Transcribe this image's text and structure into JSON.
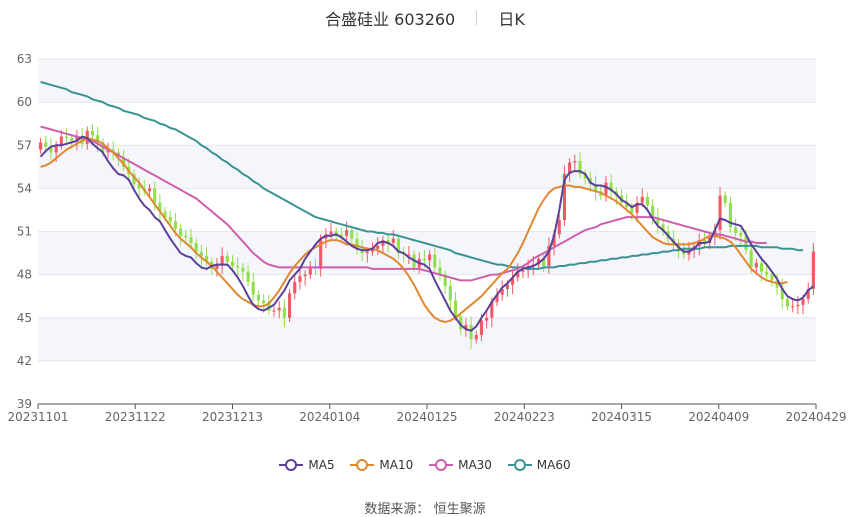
{
  "title": {
    "name": "合盛硅业 603260",
    "period": "日K"
  },
  "source_label": "数据来源：",
  "source_value": "恒生聚源",
  "chart_data": {
    "type": "candlestick",
    "title": "合盛硅业 603260 日K",
    "ylim": [
      39,
      63
    ],
    "yticks": [
      39,
      42,
      45,
      48,
      51,
      54,
      57,
      60,
      63
    ],
    "xticks": [
      "20231101",
      "20231122",
      "20231213",
      "20240104",
      "20240125",
      "20240223",
      "20240315",
      "20240409",
      "20240429"
    ],
    "colors": {
      "up": "#f05a64",
      "down": "#8fe04a",
      "ma5": "#5b3f9a",
      "ma10": "#e0882f",
      "ma30": "#cf5fae",
      "ma60": "#3a9393"
    },
    "legend": [
      {
        "name": "MA5",
        "color": "#5b3f9a"
      },
      {
        "name": "MA10",
        "color": "#e0882f"
      },
      {
        "name": "MA30",
        "color": "#cf5fae"
      },
      {
        "name": "MA60",
        "color": "#3a9393"
      }
    ],
    "close": [
      57.2,
      56.9,
      56.5,
      57.0,
      57.6,
      57.5,
      57.3,
      57.6,
      57.1,
      58.0,
      57.7,
      57.2,
      56.5,
      56.7,
      56.5,
      56.2,
      55.5,
      55.0,
      54.3,
      54.0,
      53.8,
      54.0,
      53.0,
      52.4,
      52.0,
      51.7,
      51.2,
      50.7,
      50.6,
      50.2,
      49.6,
      49.3,
      48.9,
      48.4,
      48.7,
      49.3,
      48.9,
      48.6,
      48.5,
      48.2,
      47.5,
      46.6,
      46.2,
      46.0,
      45.5,
      45.5,
      45.7,
      45.0,
      46.7,
      47.5,
      47.9,
      48.0,
      48.5,
      48.4,
      50.5,
      50.8,
      51.0,
      50.8,
      50.7,
      51.1,
      50.5,
      49.8,
      49.5,
      49.6,
      49.8,
      50.0,
      50.4,
      50.2,
      50.5,
      49.5,
      49.4,
      49.4,
      48.5,
      49.1,
      49.0,
      49.4,
      48.5,
      48.0,
      47.2,
      46.2,
      45.1,
      44.2,
      44.5,
      43.5,
      43.8,
      44.8,
      45.0,
      46.1,
      46.6,
      47.0,
      47.3,
      47.8,
      48.2,
      48.3,
      48.6,
      48.7,
      49.1,
      48.6,
      50.0,
      50.8,
      51.8,
      55.0,
      55.8,
      55.9,
      55.0,
      54.7,
      54.3,
      53.8,
      53.5,
      54.4,
      53.8,
      53.5,
      53.0,
      52.7,
      52.3,
      53.0,
      53.4,
      52.8,
      52.0,
      51.5,
      51.0,
      50.5,
      50.2,
      49.8,
      49.4,
      49.7,
      50.0,
      50.4,
      50.2,
      50.6,
      51.1,
      53.5,
      53.0,
      51.3,
      50.9,
      50.7,
      49.7,
      48.5,
      48.8,
      48.2,
      48.0,
      47.6,
      47.1,
      46.3,
      45.8,
      45.8,
      45.9,
      46.3,
      47.0,
      49.6
    ],
    "ma5": [
      56.2,
      56.6,
      56.9,
      57.0,
      57.0,
      57.1,
      57.2,
      57.3,
      57.6,
      57.5,
      57.1,
      56.8,
      56.5,
      55.9,
      55.4,
      55.0,
      54.9,
      54.6,
      53.9,
      53.3,
      52.8,
      52.5,
      52.0,
      51.7,
      51.1,
      50.5,
      50.0,
      49.5,
      49.3,
      49.2,
      48.8,
      48.5,
      48.4,
      48.6,
      48.7,
      48.7,
      48.7,
      48.3,
      47.8,
      47.2,
      46.5,
      45.9,
      45.6,
      45.5,
      45.7,
      45.9,
      46.4,
      46.9,
      47.6,
      48.0,
      48.4,
      49.1,
      49.6,
      50.1,
      50.5,
      50.7,
      50.7,
      50.8,
      50.6,
      50.3,
      50.0,
      49.8,
      49.7,
      49.7,
      49.8,
      50.2,
      50.3,
      50.2,
      50.0,
      49.6,
      49.5,
      49.2,
      49.0,
      48.8,
      48.7,
      48.4,
      47.6,
      46.9,
      46.2,
      45.5,
      45.0,
      44.5,
      44.2,
      44.1,
      44.4,
      45.0,
      45.5,
      46.1,
      46.6,
      47.1,
      47.4,
      47.8,
      48.2,
      48.4,
      48.5,
      48.6,
      48.8,
      49.1,
      49.6,
      50.7,
      52.5,
      54.6,
      55.1,
      55.2,
      55.2,
      55.0,
      54.4,
      54.2,
      54.2,
      54.1,
      53.9,
      53.6,
      53.2,
      53.0,
      52.7,
      52.9,
      52.9,
      52.5,
      51.9,
      51.4,
      51.1,
      50.7,
      50.3,
      49.9,
      49.6,
      49.6,
      49.8,
      50.2,
      50.2,
      50.3,
      51.1,
      51.9,
      51.8,
      51.6,
      51.5,
      51.4,
      50.8,
      50.1,
      49.6,
      49.1,
      48.7,
      48.2,
      47.7,
      47.0,
      46.5,
      46.3,
      46.2,
      46.4,
      46.9,
      47.2
    ],
    "ma10": [
      55.5,
      55.6,
      55.8,
      56.1,
      56.4,
      56.7,
      56.9,
      57.1,
      57.3,
      57.5,
      57.4,
      57.3,
      57.1,
      56.8,
      56.5,
      56.1,
      55.7,
      55.2,
      54.8,
      54.4,
      53.9,
      53.4,
      52.9,
      52.4,
      51.9,
      51.4,
      50.9,
      50.5,
      50.2,
      49.9,
      49.5,
      49.2,
      48.9,
      48.6,
      48.2,
      47.8,
      47.4,
      47.0,
      46.6,
      46.3,
      46.1,
      45.9,
      45.8,
      45.8,
      46.0,
      46.4,
      46.9,
      47.5,
      48.1,
      48.6,
      49.0,
      49.4,
      49.7,
      49.9,
      50.1,
      50.3,
      50.4,
      50.4,
      50.3,
      50.1,
      50.1,
      50.0,
      49.9,
      49.8,
      49.8,
      49.7,
      49.5,
      49.3,
      49.1,
      48.8,
      48.4,
      47.9,
      47.3,
      46.6,
      45.9,
      45.4,
      45.0,
      44.8,
      44.7,
      44.8,
      45.0,
      45.3,
      45.6,
      45.9,
      46.2,
      46.5,
      46.9,
      47.3,
      47.7,
      48.1,
      48.4,
      48.9,
      49.5,
      50.2,
      51.0,
      51.8,
      52.6,
      53.2,
      53.7,
      54.0,
      54.1,
      54.2,
      54.2,
      54.1,
      54.1,
      54.0,
      53.9,
      53.8,
      53.7,
      53.5,
      53.3,
      53.1,
      52.8,
      52.5,
      52.2,
      51.8,
      51.4,
      51.0,
      50.6,
      50.4,
      50.2,
      50.1,
      50.1,
      50.1,
      50.1,
      50.1,
      50.2,
      50.3,
      50.5,
      50.7,
      50.7,
      50.6,
      50.5,
      50.3,
      49.9,
      49.4,
      48.9,
      48.4,
      48.1,
      47.8,
      47.6,
      47.5,
      47.4,
      47.4,
      47.5
    ],
    "ma30": [
      58.3,
      58.2,
      58.1,
      58.0,
      57.9,
      57.8,
      57.7,
      57.6,
      57.5,
      57.4,
      57.3,
      57.1,
      56.9,
      56.7,
      56.5,
      56.3,
      56.1,
      55.9,
      55.7,
      55.5,
      55.3,
      55.1,
      54.9,
      54.7,
      54.5,
      54.3,
      54.1,
      53.9,
      53.7,
      53.5,
      53.3,
      53.0,
      52.7,
      52.4,
      52.1,
      51.8,
      51.5,
      51.1,
      50.7,
      50.3,
      49.9,
      49.5,
      49.2,
      48.9,
      48.7,
      48.6,
      48.5,
      48.5,
      48.5,
      48.5,
      48.5,
      48.5,
      48.5,
      48.5,
      48.5,
      48.5,
      48.5,
      48.5,
      48.5,
      48.5,
      48.5,
      48.5,
      48.5,
      48.5,
      48.4,
      48.4,
      48.4,
      48.4,
      48.4,
      48.4,
      48.4,
      48.4,
      48.4,
      48.4,
      48.3,
      48.2,
      48.1,
      48.0,
      47.9,
      47.8,
      47.7,
      47.6,
      47.6,
      47.6,
      47.7,
      47.8,
      47.9,
      48.0,
      48.0,
      48.1,
      48.2,
      48.3,
      48.4,
      48.6,
      48.8,
      49.1,
      49.3,
      49.5,
      49.7,
      49.9,
      50.1,
      50.3,
      50.5,
      50.7,
      50.9,
      51.1,
      51.2,
      51.3,
      51.5,
      51.6,
      51.7,
      51.8,
      51.9,
      52.0,
      52.0,
      52.0,
      52.0,
      52.0,
      52.0,
      51.9,
      51.8,
      51.7,
      51.6,
      51.5,
      51.4,
      51.3,
      51.2,
      51.1,
      51.0,
      50.9,
      50.8,
      50.8,
      50.7,
      50.6,
      50.5,
      50.4,
      50.3,
      50.3,
      50.2,
      50.2,
      50.2
    ],
    "ma60": [
      61.4,
      61.3,
      61.2,
      61.1,
      61.0,
      60.9,
      60.7,
      60.6,
      60.5,
      60.4,
      60.2,
      60.1,
      60.0,
      59.8,
      59.7,
      59.6,
      59.4,
      59.3,
      59.2,
      59.1,
      58.9,
      58.8,
      58.7,
      58.5,
      58.4,
      58.2,
      58.1,
      57.9,
      57.7,
      57.5,
      57.3,
      57.0,
      56.8,
      56.5,
      56.3,
      56.0,
      55.8,
      55.5,
      55.3,
      55.0,
      54.8,
      54.5,
      54.3,
      54.0,
      53.8,
      53.6,
      53.4,
      53.2,
      53.0,
      52.8,
      52.6,
      52.4,
      52.2,
      52.0,
      51.9,
      51.8,
      51.7,
      51.6,
      51.5,
      51.4,
      51.3,
      51.2,
      51.1,
      51.0,
      51.0,
      50.9,
      50.9,
      50.8,
      50.8,
      50.7,
      50.6,
      50.5,
      50.4,
      50.3,
      50.2,
      50.1,
      50.0,
      49.9,
      49.8,
      49.7,
      49.5,
      49.4,
      49.3,
      49.2,
      49.1,
      49.0,
      48.9,
      48.8,
      48.7,
      48.7,
      48.6,
      48.5,
      48.5,
      48.5,
      48.4,
      48.4,
      48.4,
      48.5,
      48.5,
      48.5,
      48.6,
      48.6,
      48.7,
      48.7,
      48.8,
      48.8,
      48.9,
      48.9,
      49.0,
      49.0,
      49.1,
      49.1,
      49.2,
      49.2,
      49.3,
      49.3,
      49.4,
      49.4,
      49.5,
      49.5,
      49.6,
      49.6,
      49.7,
      49.7,
      49.8,
      49.8,
      49.8,
      49.8,
      49.9,
      49.9,
      49.9,
      49.9,
      49.9,
      50.0,
      50.0,
      50.0,
      50.0,
      50.0,
      50.0,
      49.9,
      49.9,
      49.9,
      49.9,
      49.8,
      49.8,
      49.8,
      49.7,
      49.7
    ]
  }
}
